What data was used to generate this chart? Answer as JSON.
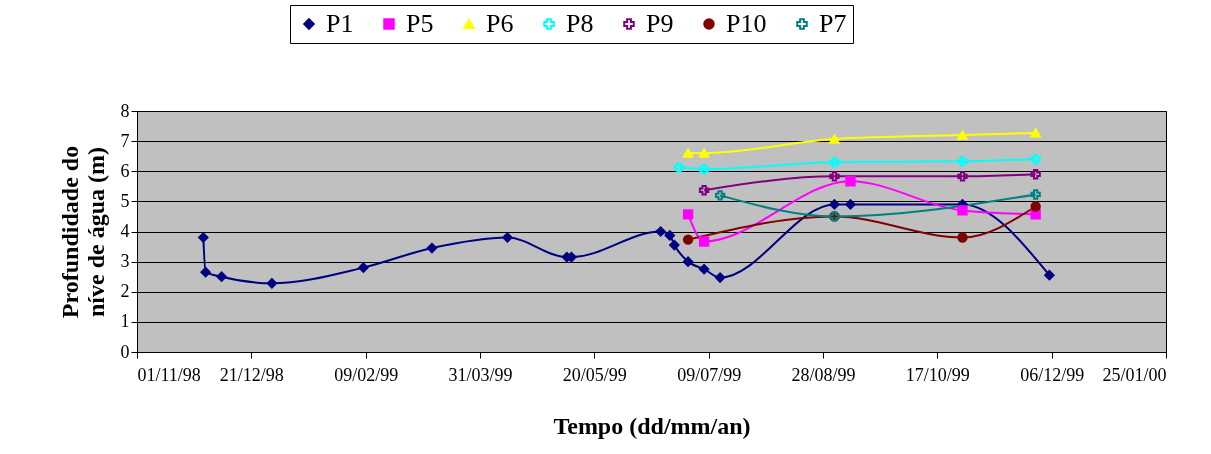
{
  "chart_data": {
    "type": "line",
    "xlabel": "Tempo (dd/mm/an)",
    "ylabel": "Profundidade do níve de água (m)",
    "xlim": [
      "1998-11-01",
      "2000-01-25"
    ],
    "xticks": [
      {
        "value": "1998-11-01",
        "label": "01/11/98"
      },
      {
        "value": "1998-12-21",
        "label": "21/12/98"
      },
      {
        "value": "1999-02-09",
        "label": "09/02/99"
      },
      {
        "value": "1999-03-31",
        "label": "31/03/99"
      },
      {
        "value": "1999-05-20",
        "label": "20/05/99"
      },
      {
        "value": "1999-07-09",
        "label": "09/07/99"
      },
      {
        "value": "1999-08-28",
        "label": "28/08/99"
      },
      {
        "value": "1999-10-17",
        "label": "17/10/99"
      },
      {
        "value": "1999-12-06",
        "label": "06/12/99"
      },
      {
        "value": "2000-01-25",
        "label": "25/01/00"
      }
    ],
    "ylim": [
      0,
      8
    ],
    "yticks": [
      0,
      1,
      2,
      3,
      4,
      5,
      6,
      7,
      8
    ],
    "grid": "y",
    "legend": "top",
    "series": [
      {
        "name": "P1",
        "color": "#000080",
        "marker": "diamond",
        "x": [
          "1998-11-30",
          "1998-12-01",
          "1998-12-08",
          "1998-12-30",
          "1999-02-08",
          "1999-03-10",
          "1999-04-12",
          "1999-05-08",
          "1999-05-10",
          "1999-06-18",
          "1999-06-22",
          "1999-06-24",
          "1999-06-30",
          "1999-07-07",
          "1999-07-14",
          "1999-09-02",
          "1999-09-09",
          "1999-10-28",
          "1999-12-05"
        ],
        "values": [
          3.8,
          2.65,
          2.5,
          2.28,
          2.8,
          3.45,
          3.8,
          3.15,
          3.15,
          4.0,
          3.87,
          3.55,
          3.0,
          2.75,
          2.47,
          4.9,
          4.9,
          4.9,
          2.55
        ]
      },
      {
        "name": "P5",
        "color": "#ff00ff",
        "marker": "square",
        "x": [
          "1999-06-30",
          "1999-07-07",
          "1999-09-09",
          "1999-10-28",
          "1999-11-29"
        ],
        "values": [
          4.57,
          3.67,
          5.67,
          4.7,
          4.57
        ]
      },
      {
        "name": "P6",
        "color": "#ffff00",
        "marker": "triangle",
        "x": [
          "1999-06-30",
          "1999-07-07",
          "1999-09-02",
          "1999-10-28",
          "1999-11-29"
        ],
        "values": [
          6.6,
          6.6,
          7.07,
          7.2,
          7.27
        ]
      },
      {
        "name": "P8",
        "color": "#00ffff",
        "marker": "cross",
        "x": [
          "1999-06-26",
          "1999-07-07",
          "1999-09-02",
          "1999-10-28",
          "1999-11-29"
        ],
        "values": [
          6.13,
          6.07,
          6.3,
          6.33,
          6.4
        ]
      },
      {
        "name": "P9",
        "color": "#800080",
        "marker": "cross",
        "x": [
          "1999-07-07",
          "1999-09-02",
          "1999-10-28",
          "1999-11-29"
        ],
        "values": [
          5.37,
          5.83,
          5.83,
          5.9
        ]
      },
      {
        "name": "P10",
        "color": "#800000",
        "marker": "circle",
        "x": [
          "1999-06-30",
          "1999-09-02",
          "1999-10-28",
          "1999-11-29"
        ],
        "values": [
          3.73,
          4.5,
          3.8,
          4.83
        ]
      },
      {
        "name": "P7",
        "color": "#008080",
        "marker": "cross",
        "x": [
          "1999-07-14",
          "1999-09-02",
          "1999-11-29"
        ],
        "values": [
          5.2,
          4.5,
          5.23
        ]
      }
    ]
  }
}
